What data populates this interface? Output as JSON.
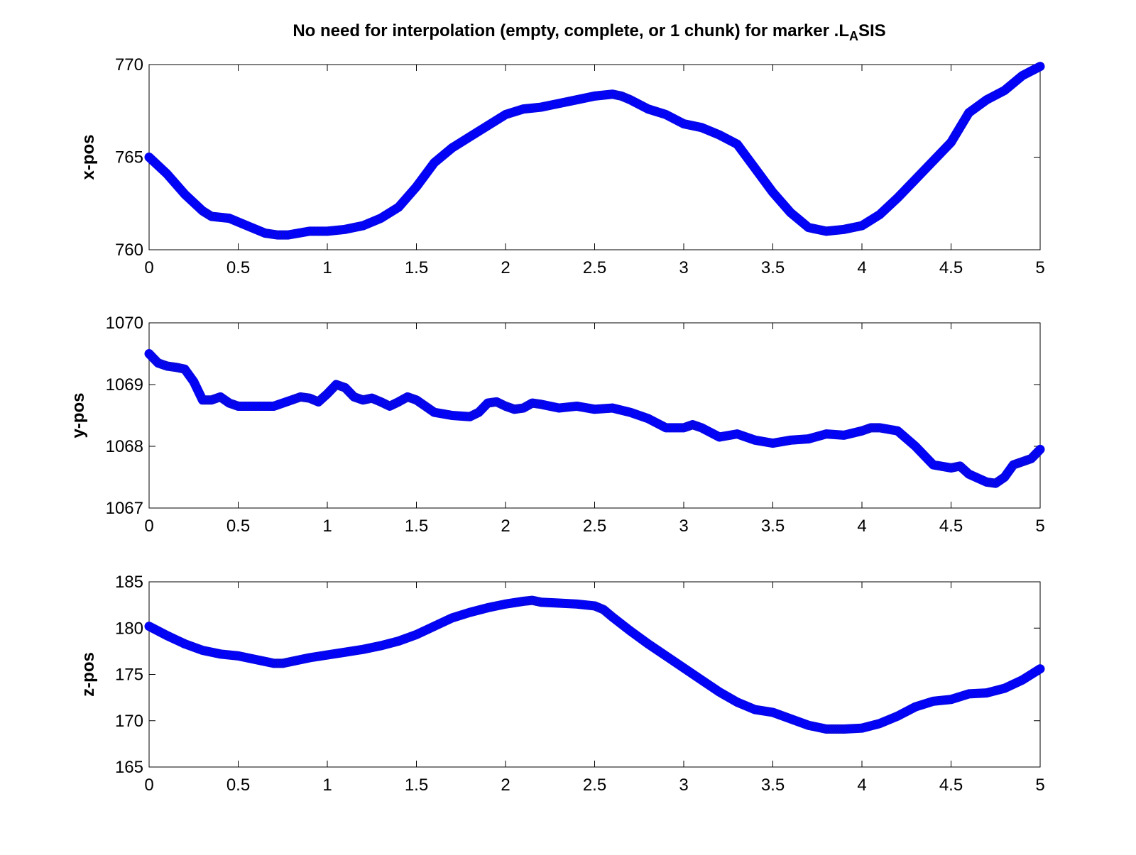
{
  "title": {
    "prefix": "No need for interpolation (empty, complete, or 1 chunk) for marker .L",
    "subscript": "A",
    "suffix": "SIS"
  },
  "colors": {
    "line": "#0000ff",
    "axes": "#000000",
    "background": "#ffffff"
  },
  "chart_data": [
    {
      "type": "line",
      "marker": "circle",
      "ylabel": "x-pos",
      "xlim": [
        0,
        5
      ],
      "ylim": [
        760,
        770
      ],
      "xticks": [
        "0",
        "0.5",
        "1",
        "1.5",
        "2",
        "2.5",
        "3",
        "3.5",
        "4",
        "4.5",
        "5"
      ],
      "yticks": [
        "760",
        "765",
        "770"
      ],
      "grid": false,
      "series": [
        {
          "x": [
            0,
            0.1,
            0.2,
            0.3,
            0.35,
            0.45,
            0.55,
            0.65,
            0.72,
            0.78,
            0.9,
            1.0,
            1.1,
            1.2,
            1.3,
            1.4,
            1.5,
            1.6,
            1.7,
            1.8,
            1.9,
            2.0,
            2.1,
            2.2,
            2.3,
            2.4,
            2.5,
            2.6,
            2.65,
            2.7,
            2.8,
            2.9,
            3.0,
            3.1,
            3.2,
            3.3,
            3.4,
            3.5,
            3.6,
            3.7,
            3.8,
            3.9,
            4.0,
            4.1,
            4.2,
            4.3,
            4.4,
            4.5,
            4.55,
            4.6,
            4.7,
            4.8,
            4.9,
            5.0
          ],
          "y": [
            765.0,
            764.1,
            763.0,
            762.1,
            761.8,
            761.7,
            761.3,
            760.9,
            760.8,
            760.8,
            761.0,
            761.0,
            761.1,
            761.3,
            761.7,
            762.3,
            763.4,
            764.7,
            765.5,
            766.1,
            766.7,
            767.3,
            767.6,
            767.7,
            767.9,
            768.1,
            768.3,
            768.4,
            768.3,
            768.1,
            767.6,
            767.3,
            766.8,
            766.6,
            766.2,
            765.7,
            764.4,
            763.1,
            762.0,
            761.2,
            761.0,
            761.1,
            761.3,
            761.9,
            762.8,
            763.8,
            764.8,
            765.8,
            766.6,
            767.4,
            768.1,
            768.6,
            769.4,
            769.9
          ]
        }
      ]
    },
    {
      "type": "line",
      "marker": "circle",
      "ylabel": "y-pos",
      "xlim": [
        0,
        5
      ],
      "ylim": [
        1067,
        1070
      ],
      "xticks": [
        "0",
        "0.5",
        "1",
        "1.5",
        "2",
        "2.5",
        "3",
        "3.5",
        "4",
        "4.5",
        "5"
      ],
      "yticks": [
        "1067",
        "1068",
        "1069",
        "1070"
      ],
      "grid": false,
      "series": [
        {
          "x": [
            0,
            0.05,
            0.1,
            0.15,
            0.2,
            0.25,
            0.3,
            0.35,
            0.4,
            0.45,
            0.5,
            0.6,
            0.7,
            0.8,
            0.85,
            0.9,
            0.95,
            1.0,
            1.05,
            1.1,
            1.15,
            1.2,
            1.25,
            1.3,
            1.35,
            1.4,
            1.45,
            1.5,
            1.55,
            1.6,
            1.7,
            1.8,
            1.85,
            1.9,
            1.95,
            2.0,
            2.05,
            2.1,
            2.15,
            2.2,
            2.3,
            2.4,
            2.5,
            2.6,
            2.7,
            2.8,
            2.9,
            3.0,
            3.05,
            3.1,
            3.2,
            3.3,
            3.4,
            3.5,
            3.6,
            3.7,
            3.8,
            3.9,
            4.0,
            4.05,
            4.1,
            4.2,
            4.3,
            4.4,
            4.5,
            4.55,
            4.6,
            4.7,
            4.75,
            4.8,
            4.85,
            4.9,
            4.95,
            5.0
          ],
          "y": [
            1069.5,
            1069.35,
            1069.3,
            1069.28,
            1069.25,
            1069.05,
            1068.75,
            1068.75,
            1068.8,
            1068.7,
            1068.65,
            1068.65,
            1068.65,
            1068.75,
            1068.8,
            1068.78,
            1068.72,
            1068.85,
            1069.0,
            1068.95,
            1068.8,
            1068.75,
            1068.78,
            1068.72,
            1068.65,
            1068.72,
            1068.8,
            1068.75,
            1068.65,
            1068.55,
            1068.5,
            1068.48,
            1068.55,
            1068.7,
            1068.72,
            1068.65,
            1068.6,
            1068.62,
            1068.7,
            1068.68,
            1068.62,
            1068.65,
            1068.6,
            1068.62,
            1068.55,
            1068.45,
            1068.3,
            1068.3,
            1068.35,
            1068.3,
            1068.15,
            1068.2,
            1068.1,
            1068.05,
            1068.1,
            1068.12,
            1068.2,
            1068.18,
            1068.25,
            1068.3,
            1068.3,
            1068.25,
            1068.0,
            1067.7,
            1067.65,
            1067.68,
            1067.55,
            1067.42,
            1067.4,
            1067.5,
            1067.7,
            1067.75,
            1067.8,
            1067.95
          ]
        }
      ]
    },
    {
      "type": "line",
      "marker": "circle",
      "ylabel": "z-pos",
      "xlim": [
        0,
        5
      ],
      "ylim": [
        165,
        185
      ],
      "xticks": [
        "0",
        "0.5",
        "1",
        "1.5",
        "2",
        "2.5",
        "3",
        "3.5",
        "4",
        "4.5",
        "5"
      ],
      "yticks": [
        "165",
        "170",
        "175",
        "180",
        "185"
      ],
      "grid": false,
      "series": [
        {
          "x": [
            0,
            0.1,
            0.2,
            0.3,
            0.4,
            0.5,
            0.6,
            0.7,
            0.75,
            0.8,
            0.9,
            1.0,
            1.1,
            1.2,
            1.3,
            1.4,
            1.5,
            1.6,
            1.7,
            1.8,
            1.9,
            2.0,
            2.1,
            2.15,
            2.2,
            2.3,
            2.4,
            2.5,
            2.55,
            2.6,
            2.7,
            2.8,
            2.9,
            3.0,
            3.1,
            3.2,
            3.3,
            3.4,
            3.5,
            3.6,
            3.7,
            3.8,
            3.85,
            3.9,
            4.0,
            4.1,
            4.2,
            4.3,
            4.4,
            4.5,
            4.6,
            4.7,
            4.8,
            4.9,
            5.0
          ],
          "y": [
            180.2,
            179.2,
            178.3,
            177.6,
            177.2,
            177.0,
            176.6,
            176.2,
            176.2,
            176.4,
            176.8,
            177.1,
            177.4,
            177.7,
            178.1,
            178.6,
            179.3,
            180.2,
            181.1,
            181.7,
            182.2,
            182.6,
            182.9,
            183.0,
            182.8,
            182.7,
            182.6,
            182.4,
            182.0,
            181.2,
            179.7,
            178.3,
            177.0,
            175.7,
            174.4,
            173.1,
            172.0,
            171.2,
            170.9,
            170.2,
            169.5,
            169.1,
            169.1,
            169.1,
            169.2,
            169.7,
            170.5,
            171.5,
            172.1,
            172.3,
            172.9,
            173.0,
            173.5,
            174.4,
            175.6
          ]
        }
      ]
    }
  ]
}
